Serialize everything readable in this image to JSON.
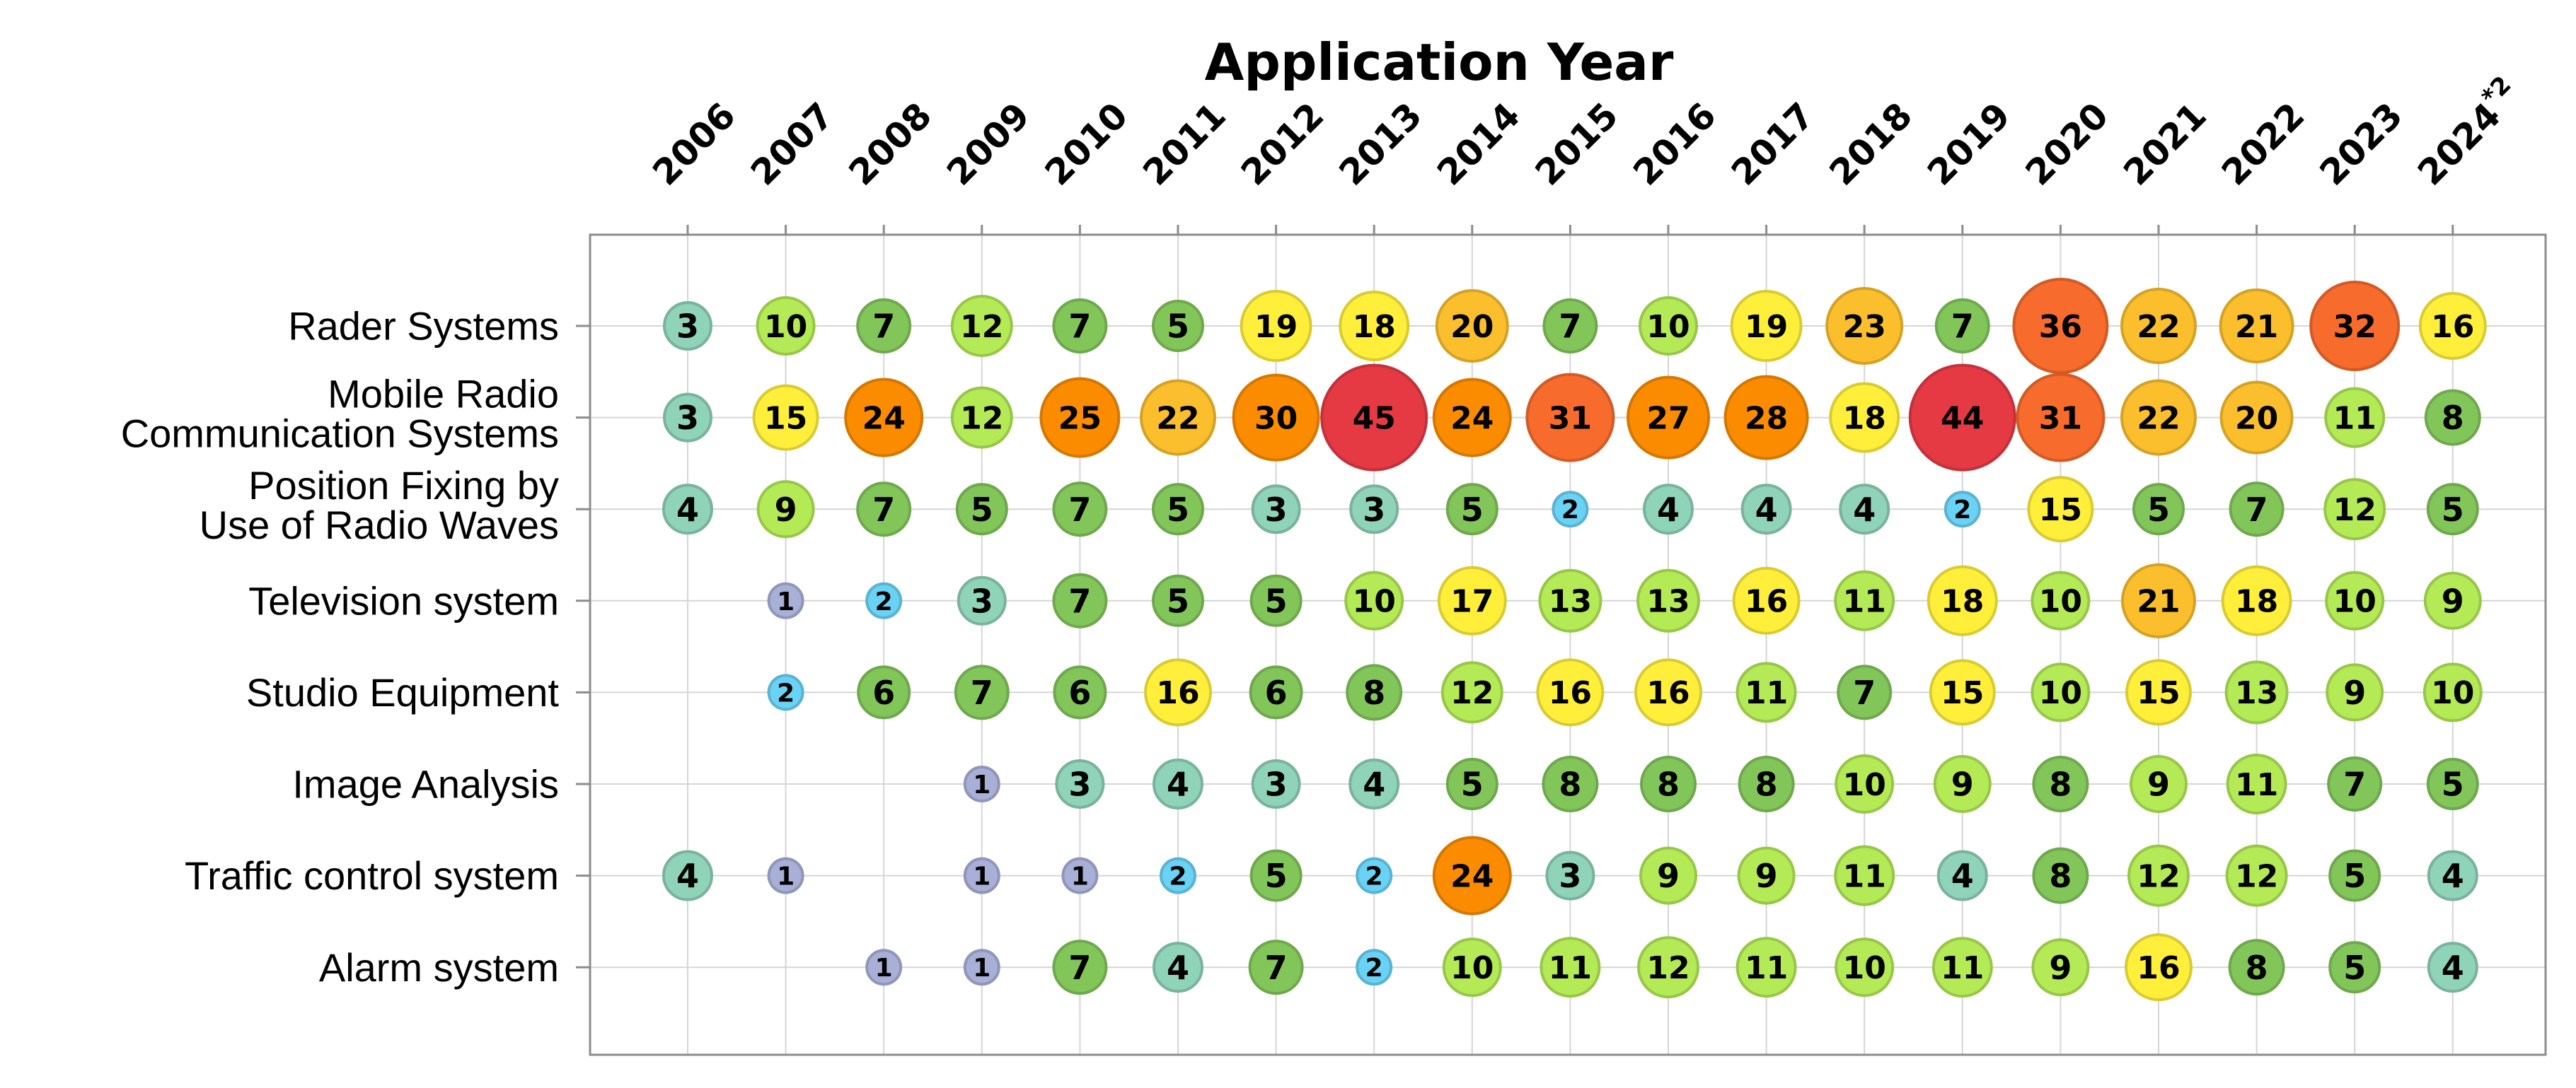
{
  "chart_data": {
    "type": "bubble-matrix",
    "title": "Application Year",
    "years": [
      "2006",
      "2007",
      "2008",
      "2009",
      "2010",
      "2011",
      "2012",
      "2013",
      "2014",
      "2015",
      "2016",
      "2017",
      "2018",
      "2019",
      "2020",
      "2021",
      "2022",
      "2023",
      "2024*2"
    ],
    "categories": [
      "Rader Systems",
      "Mobile Radio Communication Systems",
      "Position Fixing by Use of Radio Waves",
      "Television system",
      "Studio Equipment",
      "Image Analysis",
      "Traffic control system",
      "Alarm system"
    ],
    "values": [
      [
        3,
        10,
        7,
        12,
        7,
        5,
        19,
        18,
        20,
        7,
        10,
        19,
        23,
        7,
        36,
        22,
        21,
        32,
        16
      ],
      [
        3,
        15,
        24,
        12,
        25,
        22,
        30,
        45,
        24,
        31,
        27,
        28,
        18,
        44,
        31,
        22,
        20,
        11,
        8
      ],
      [
        4,
        9,
        7,
        5,
        7,
        5,
        3,
        3,
        5,
        2,
        4,
        4,
        4,
        2,
        15,
        5,
        7,
        12,
        5
      ],
      [
        null,
        1,
        2,
        3,
        7,
        5,
        5,
        10,
        17,
        13,
        13,
        16,
        11,
        18,
        10,
        21,
        18,
        10,
        9
      ],
      [
        null,
        2,
        6,
        7,
        6,
        16,
        6,
        8,
        12,
        16,
        16,
        11,
        7,
        15,
        10,
        15,
        13,
        9,
        10
      ],
      [
        null,
        null,
        null,
        1,
        3,
        4,
        3,
        4,
        5,
        8,
        8,
        8,
        10,
        9,
        8,
        9,
        11,
        7,
        5
      ],
      [
        4,
        1,
        null,
        1,
        1,
        2,
        5,
        2,
        24,
        3,
        9,
        9,
        11,
        4,
        8,
        12,
        12,
        5,
        4
      ],
      [
        null,
        null,
        1,
        1,
        7,
        4,
        7,
        2,
        10,
        11,
        12,
        11,
        10,
        11,
        9,
        16,
        8,
        5,
        4
      ]
    ],
    "colors": {
      "1": "#a9b0d8",
      "2": "#6ad3f5",
      "3-4": "#8fd3b8",
      "5-8": "#82c65a",
      "9-14": "#b3ea55",
      "15-19": "#ffef3a",
      "20-23": "#fbbf2d",
      "24-30": "#fb8c00",
      "31-36": "#f76b2c",
      "44-45": "#e53a44"
    }
  }
}
